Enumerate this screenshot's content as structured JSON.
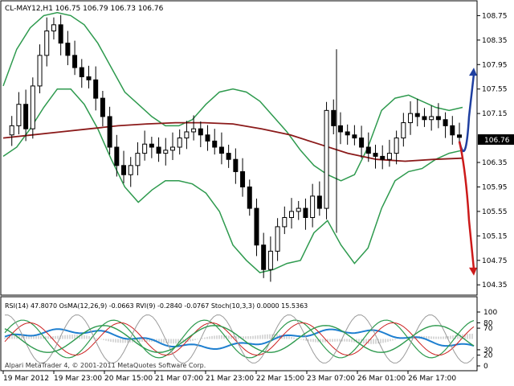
{
  "header": {
    "symbol_line": "CL-MAY12,H1  106.75 106.79 106.73 106.76"
  },
  "indicator_panel": {
    "label": "RSI(14) 47.8070  OsMA(12,26,9) -0.0663  RVI(9) -0.2840 -0.0767  Stoch(10,3,3) 0.0000 15.5363",
    "y_ticks": [
      "100",
      "80",
      "70",
      "30",
      "20",
      "0"
    ],
    "copyright": "Alpari MetaTrader 4, © 2001-2011 MetaQuotes Software Corp."
  },
  "price_axis": {
    "ticks": [
      "108.75",
      "108.35",
      "107.95",
      "107.55",
      "107.15",
      "106.35",
      "105.95",
      "105.55",
      "105.15",
      "104.75",
      "104.35"
    ],
    "current_price": "106.76"
  },
  "time_axis": {
    "labels": [
      "19 Mar 2012",
      "19 Mar 23:00",
      "20 Mar 15:00",
      "21 Mar 07:00",
      "21 Mar 23:00",
      "22 Mar 15:00",
      "23 Mar 07:00",
      "26 Mar 01:00",
      "26 Mar 17:00"
    ]
  },
  "colors": {
    "background": "#ffffff",
    "candle": "#000000",
    "bollinger": "#2e9a4e",
    "moving_average": "#8b1a1a",
    "arrow_up": "#1f3fa0",
    "arrow_down": "#cc1a1a",
    "current_price_box": "#000000",
    "rsi": "#2e9a4e",
    "osma": "#1e7fd0",
    "rvi_main": "#2e9a4e",
    "rvi_signal": "#cc2020",
    "stoch": "#9a9a9a"
  },
  "chart_data": {
    "type": "candlestick",
    "symbol": "CL-MAY12",
    "timeframe": "H1",
    "ohlc_last": {
      "open": 106.75,
      "high": 106.79,
      "low": 106.73,
      "close": 106.76
    },
    "ylim": [
      104.3,
      108.9
    ],
    "close_path": [
      106.8,
      106.95,
      107.3,
      106.9,
      107.6,
      108.1,
      108.5,
      108.6,
      108.3,
      108.1,
      107.9,
      107.75,
      107.7,
      107.4,
      107.1,
      106.6,
      106.3,
      106.15,
      106.3,
      106.5,
      106.65,
      106.6,
      106.5,
      106.55,
      106.6,
      106.75,
      106.85,
      106.9,
      106.8,
      106.7,
      106.6,
      106.5,
      106.4,
      106.2,
      105.95,
      105.6,
      105.0,
      104.6,
      104.9,
      105.3,
      105.45,
      105.55,
      105.6,
      105.45,
      105.8,
      105.6,
      107.2,
      106.95,
      106.85,
      106.8,
      106.75,
      106.6,
      106.5,
      106.45,
      106.4,
      106.5,
      106.75,
      107.0,
      107.15,
      107.1,
      107.05,
      107.1,
      107.05,
      106.95,
      106.8,
      106.76
    ],
    "bb_upper": [
      107.6,
      108.2,
      108.55,
      108.75,
      108.8,
      108.75,
      108.6,
      108.3,
      107.9,
      107.5,
      107.3,
      107.1,
      106.95,
      106.95,
      107.05,
      107.3,
      107.5,
      107.55,
      107.5,
      107.35,
      107.1,
      106.85,
      106.55,
      106.3,
      106.15,
      106.05,
      106.15,
      106.6,
      107.2,
      107.4,
      107.45,
      107.35,
      107.25,
      107.2,
      107.25
    ],
    "bb_lower": [
      106.45,
      106.6,
      106.9,
      107.25,
      107.55,
      107.55,
      107.3,
      106.9,
      106.4,
      105.95,
      105.7,
      105.9,
      106.05,
      106.05,
      106.0,
      105.85,
      105.55,
      105.0,
      104.75,
      104.55,
      104.6,
      104.7,
      104.75,
      105.2,
      105.4,
      105.0,
      104.7,
      104.95,
      105.6,
      106.05,
      106.2,
      106.25,
      106.4,
      106.5,
      106.55
    ],
    "moving_average": [
      106.75,
      106.8,
      106.85,
      106.9,
      106.95,
      106.98,
      107.0,
      107.0,
      106.98,
      106.9,
      106.8,
      106.65,
      106.5,
      106.4,
      106.37,
      106.4,
      106.42
    ],
    "projection_arrows": [
      {
        "direction": "up",
        "from": 106.3,
        "to": 107.9
      },
      {
        "direction": "down",
        "from": 106.3,
        "to": 104.5
      }
    ]
  }
}
